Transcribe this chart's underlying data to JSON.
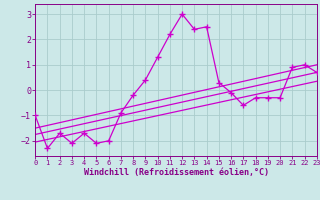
{
  "xlabel": "Windchill (Refroidissement éolien,°C)",
  "bg_color": "#cce8e8",
  "line_color": "#cc00cc",
  "grid_color": "#aacccc",
  "xlim": [
    0,
    23
  ],
  "ylim": [
    -2.6,
    3.4
  ],
  "yticks": [
    -2,
    -1,
    0,
    1,
    2,
    3
  ],
  "xticks": [
    0,
    1,
    2,
    3,
    4,
    5,
    6,
    7,
    8,
    9,
    10,
    11,
    12,
    13,
    14,
    15,
    16,
    17,
    18,
    19,
    20,
    21,
    22,
    23
  ],
  "hours": [
    0,
    1,
    2,
    3,
    4,
    5,
    6,
    7,
    8,
    9,
    10,
    11,
    12,
    13,
    14,
    15,
    16,
    17,
    18,
    19,
    20,
    21,
    22,
    23
  ],
  "temp": [
    -1.0,
    -2.3,
    -1.7,
    -2.1,
    -1.7,
    -2.1,
    -2.0,
    -0.9,
    -0.2,
    0.4,
    1.3,
    2.2,
    3.0,
    2.4,
    2.5,
    0.3,
    -0.1,
    -0.6,
    -0.3,
    -0.3,
    -0.3,
    0.9,
    1.0,
    0.7
  ],
  "tline1_y0": -1.5,
  "tline1_y1": 1.0,
  "tline2_y0": -1.75,
  "tline2_y1": 0.7,
  "tline3_y0": -2.05,
  "tline3_y1": 0.35,
  "tick_color": "#880088",
  "label_color": "#880088",
  "spine_color": "#880088"
}
